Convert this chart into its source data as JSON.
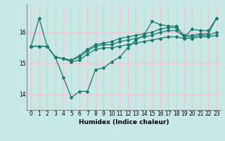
{
  "xlabel": "Humidex (Indice chaleur)",
  "background_color": "#c8e8e5",
  "grid_color": "#e8c8c8",
  "line_color": "#1a7a6e",
  "xlim": [
    -0.5,
    23.5
  ],
  "ylim": [
    13.5,
    16.9
  ],
  "yticks": [
    14,
    15,
    16
  ],
  "xticks": [
    0,
    1,
    2,
    3,
    4,
    5,
    6,
    7,
    8,
    9,
    10,
    11,
    12,
    13,
    14,
    15,
    16,
    17,
    18,
    19,
    20,
    21,
    22,
    23
  ],
  "series": [
    [
      15.55,
      16.45,
      15.55,
      15.2,
      14.55,
      13.9,
      14.1,
      14.1,
      14.8,
      14.85,
      15.05,
      15.2,
      15.5,
      15.75,
      15.9,
      16.35,
      16.25,
      16.2,
      16.2,
      15.85,
      16.1,
      16.05,
      16.05,
      16.45
    ],
    [
      15.55,
      15.55,
      15.55,
      15.2,
      15.15,
      15.05,
      15.1,
      15.3,
      15.45,
      15.5,
      15.5,
      15.55,
      15.6,
      15.65,
      15.7,
      15.75,
      15.8,
      15.85,
      15.85,
      15.8,
      15.8,
      15.85,
      15.85,
      15.9
    ],
    [
      15.55,
      15.55,
      15.55,
      15.2,
      15.15,
      15.1,
      15.2,
      15.4,
      15.55,
      15.6,
      15.6,
      15.7,
      15.75,
      15.8,
      15.85,
      15.9,
      16.0,
      16.05,
      16.05,
      15.85,
      15.85,
      15.9,
      15.9,
      16.0
    ],
    [
      15.55,
      15.55,
      15.55,
      15.2,
      15.15,
      15.1,
      15.25,
      15.45,
      15.6,
      15.65,
      15.7,
      15.8,
      15.85,
      15.9,
      15.95,
      16.0,
      16.1,
      16.15,
      16.15,
      15.9,
      15.9,
      15.95,
      15.95,
      16.45
    ]
  ]
}
